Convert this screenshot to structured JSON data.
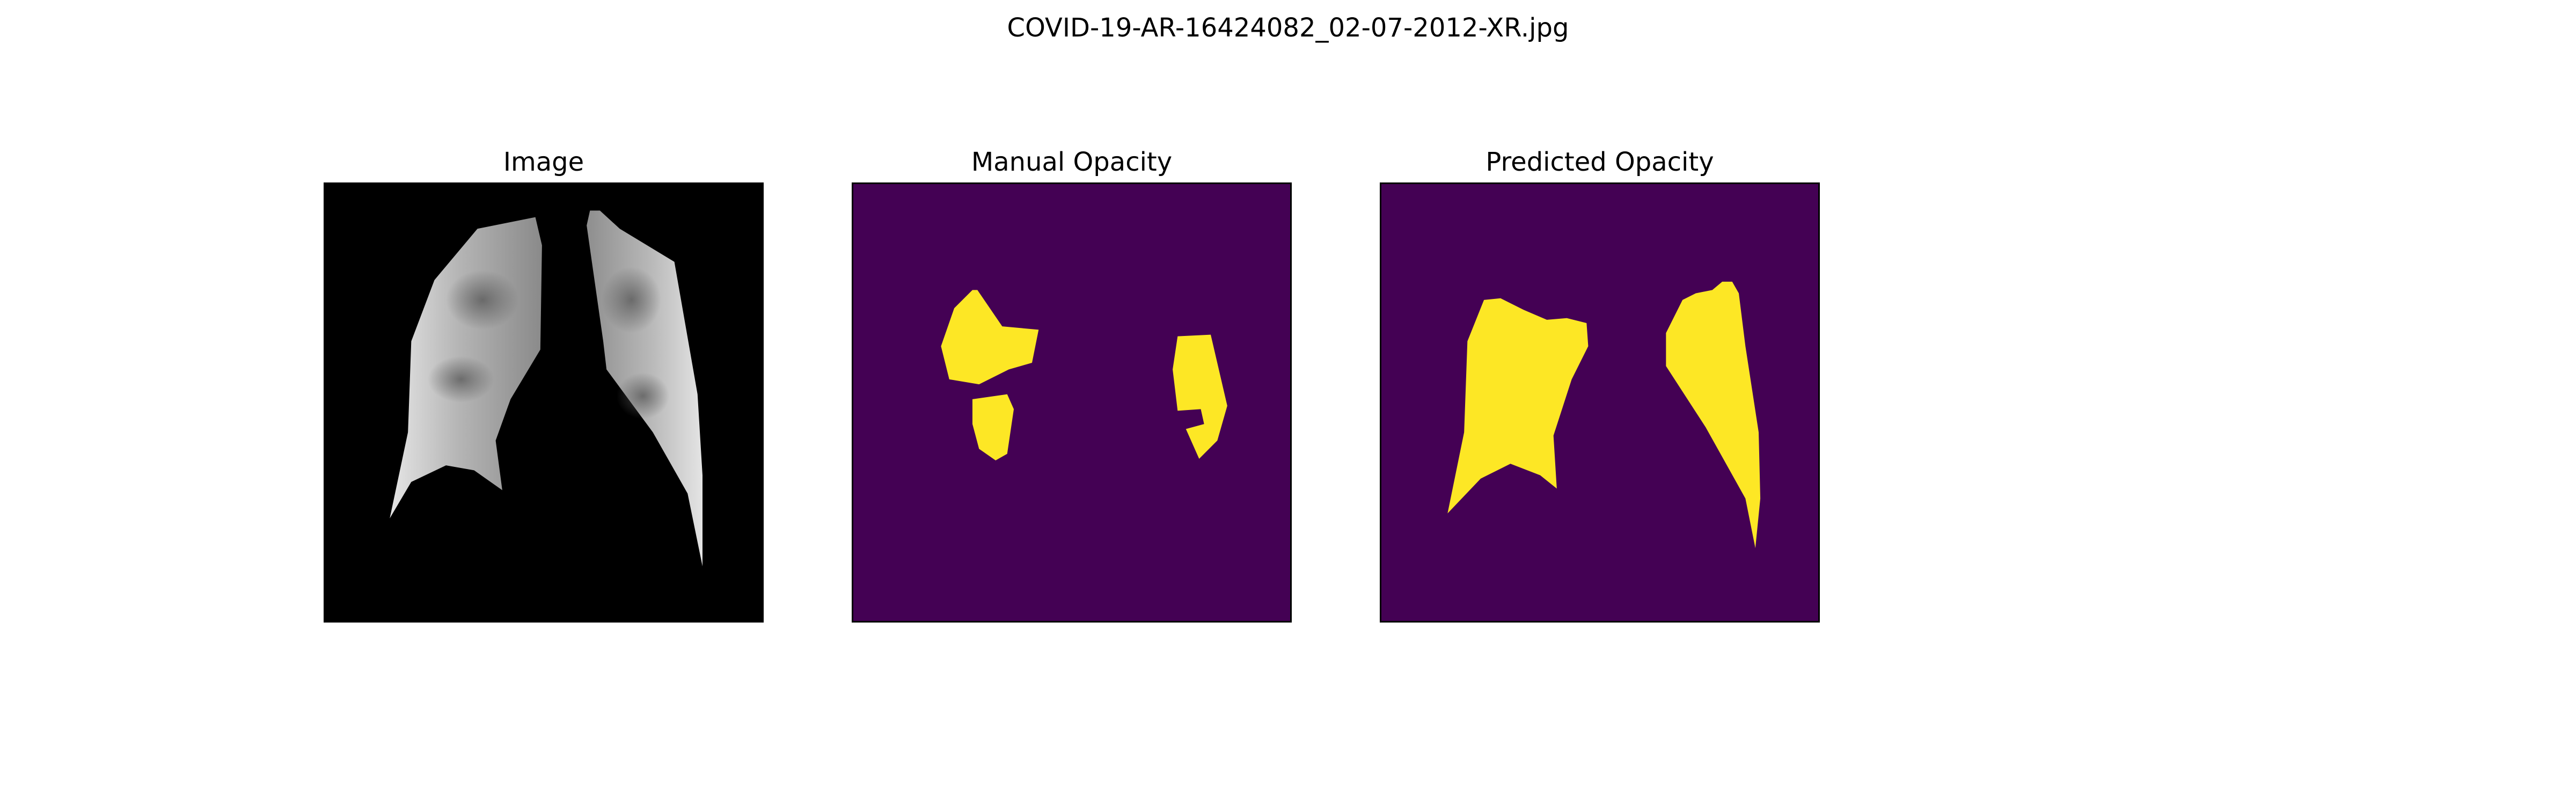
{
  "figure": {
    "title": "COVID-19-AR-16424082_02-07-2012-XR.jpg"
  },
  "panels": [
    {
      "title": "Image",
      "kind": "x-ray",
      "background": "#000000",
      "foreground": "#d8d8d8"
    },
    {
      "title": "Manual Opacity",
      "kind": "mask",
      "background": "#440154",
      "foreground": "#fde725"
    },
    {
      "title": "Predicted Opacity",
      "kind": "mask",
      "background": "#440154",
      "foreground": "#fde725"
    }
  ]
}
